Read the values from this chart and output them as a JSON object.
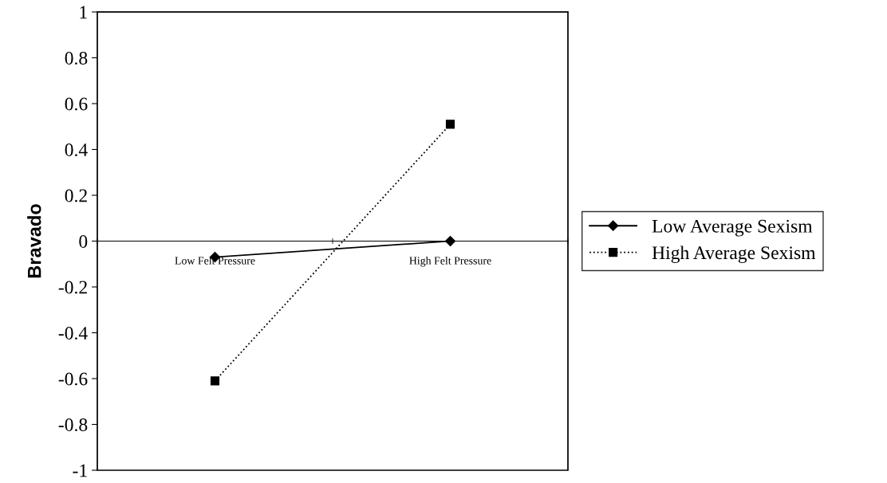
{
  "chart_data": {
    "type": "line",
    "ylabel": "Bravado",
    "categories": [
      "Low Felt Pressure",
      "High Felt Pressure"
    ],
    "series": [
      {
        "name": "Low Average Sexism",
        "color": "#000000",
        "values": [
          -0.07,
          0.0
        ],
        "marker": "diamond",
        "line_style": "solid"
      },
      {
        "name": "High Average Sexism",
        "color": "#000000",
        "values": [
          -0.61,
          0.51
        ],
        "marker": "square",
        "line_style": "dotted"
      }
    ],
    "ylim": [
      -1,
      1
    ],
    "yticks": [
      -1,
      -0.8,
      -0.6,
      -0.4,
      -0.2,
      0,
      0.2,
      0.4,
      0.6,
      0.8,
      1
    ],
    "grid": false,
    "legend": "right"
  }
}
